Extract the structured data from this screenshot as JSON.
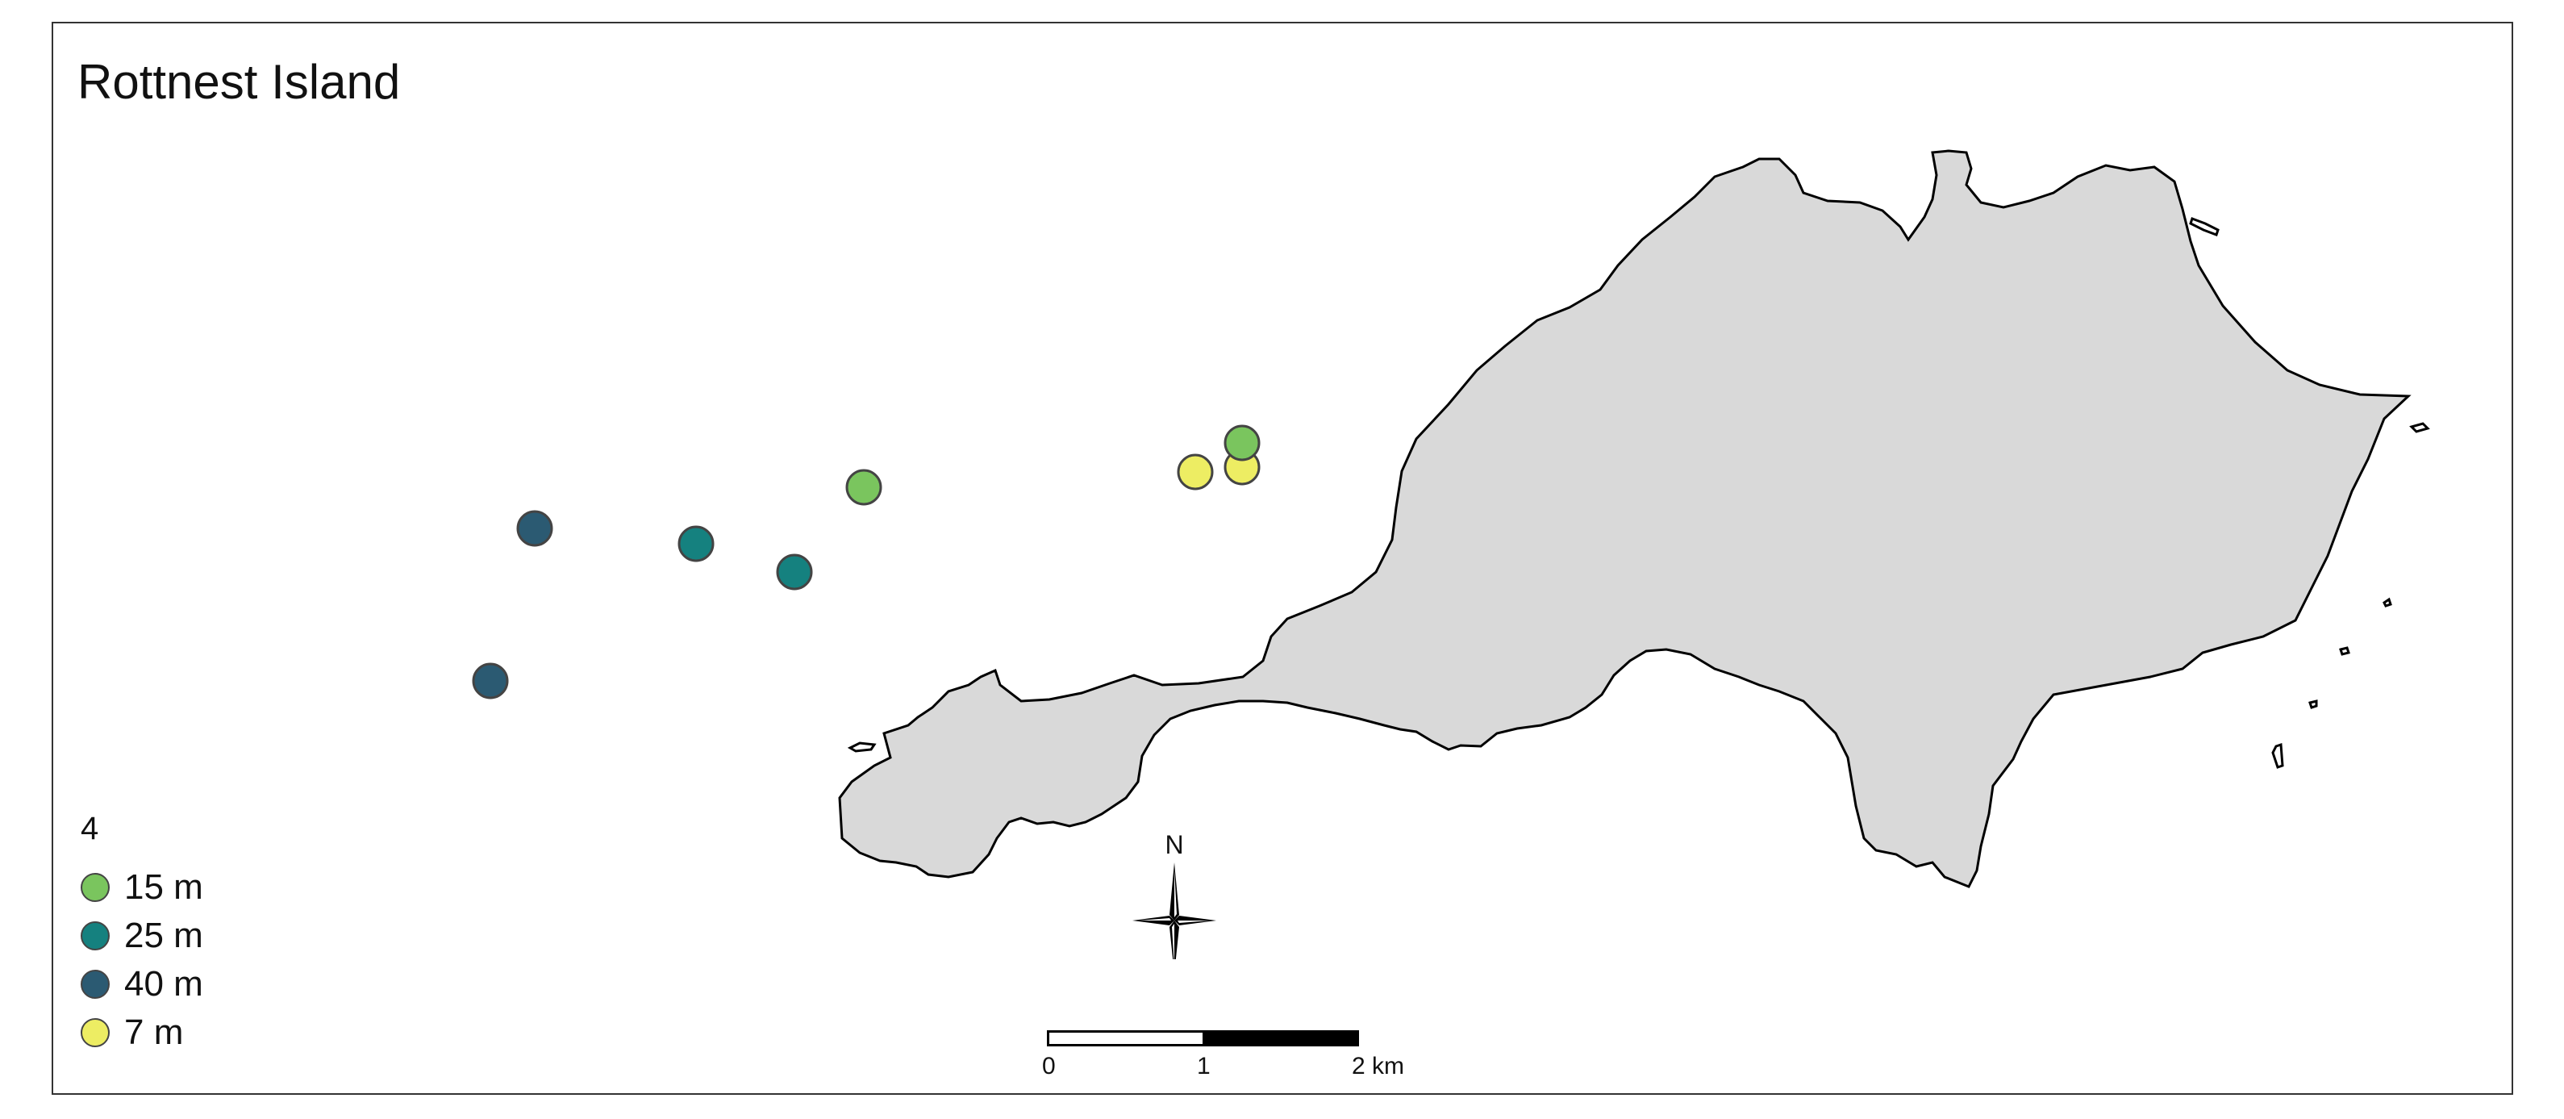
{
  "map": {
    "title": "Rottnest Island",
    "land_color": "#d9d9d9",
    "outline_color": "#000000"
  },
  "legend": {
    "title": "4",
    "items": [
      {
        "label": "15 m",
        "color": "#7ac55e"
      },
      {
        "label": "25 m",
        "color": "#15817f"
      },
      {
        "label": "40 m",
        "color": "#2b5a72"
      },
      {
        "label": "7 m",
        "color": "#eded63"
      }
    ]
  },
  "sites": [
    {
      "depth": "15 m",
      "color": "#7ac55e"
    },
    {
      "depth": "7 m",
      "color": "#eded63"
    },
    {
      "depth": "7 m",
      "color": "#eded63"
    },
    {
      "depth": "15 m",
      "color": "#7ac55e"
    },
    {
      "depth": "25 m",
      "color": "#15817f"
    },
    {
      "depth": "25 m",
      "color": "#15817f"
    },
    {
      "depth": "40 m",
      "color": "#2b5a72"
    },
    {
      "depth": "40 m",
      "color": "#2b5a72"
    }
  ],
  "north_arrow": {
    "label": "N"
  },
  "scale_bar": {
    "labels": [
      "0",
      "1",
      "2 km"
    ]
  }
}
